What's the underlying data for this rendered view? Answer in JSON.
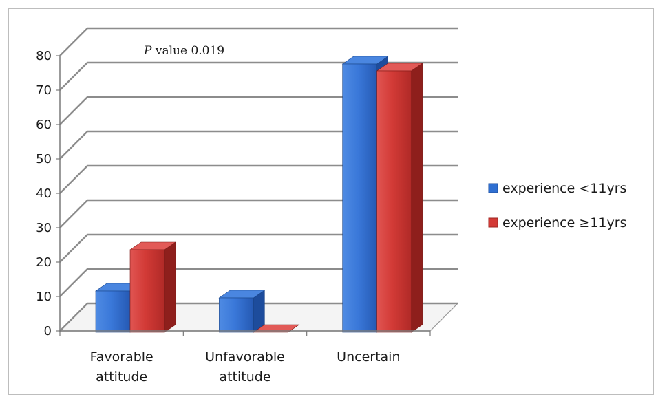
{
  "chart_data": {
    "type": "bar",
    "categories": [
      [
        "Favorable",
        "attitude"
      ],
      [
        "Unfavorable",
        "attitude"
      ],
      [
        "Uncertain"
      ]
    ],
    "series": [
      {
        "name": "experience <11yrs",
        "values": [
          12,
          10,
          78
        ],
        "color": "#2f6fd1"
      },
      {
        "name": "experience ≥11yrs",
        "values": [
          24,
          0,
          76
        ],
        "color": "#d33a36"
      }
    ],
    "y_ticks": [
      0,
      10,
      20,
      30,
      40,
      50,
      60,
      70,
      80
    ],
    "ylim": [
      0,
      80
    ],
    "annotation": {
      "italic": "P",
      "text": " value 0.019"
    },
    "grid": true,
    "legend_position": "right",
    "style": "3d-column"
  }
}
